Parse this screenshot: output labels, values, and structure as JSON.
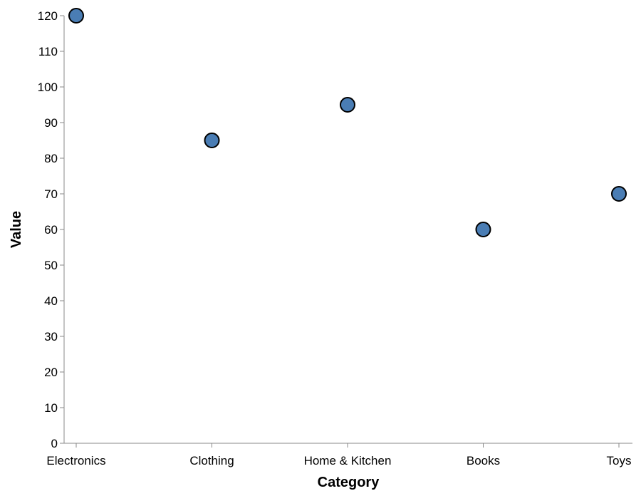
{
  "chart_data": {
    "type": "scatter",
    "categories": [
      "Electronics",
      "Clothing",
      "Home & Kitchen",
      "Books",
      "Toys"
    ],
    "values": [
      120,
      85,
      95,
      60,
      70
    ],
    "xlabel": "Category",
    "ylabel": "Value",
    "ylim": [
      0,
      120
    ],
    "yticks": [
      0,
      10,
      20,
      30,
      40,
      50,
      60,
      70,
      80,
      90,
      100,
      110,
      120
    ],
    "grid": false,
    "legend": "none",
    "colors": {
      "point_fill": "#4a7db4",
      "point_stroke": "#000000",
      "axis": "#888888",
      "text": "#000000"
    }
  }
}
